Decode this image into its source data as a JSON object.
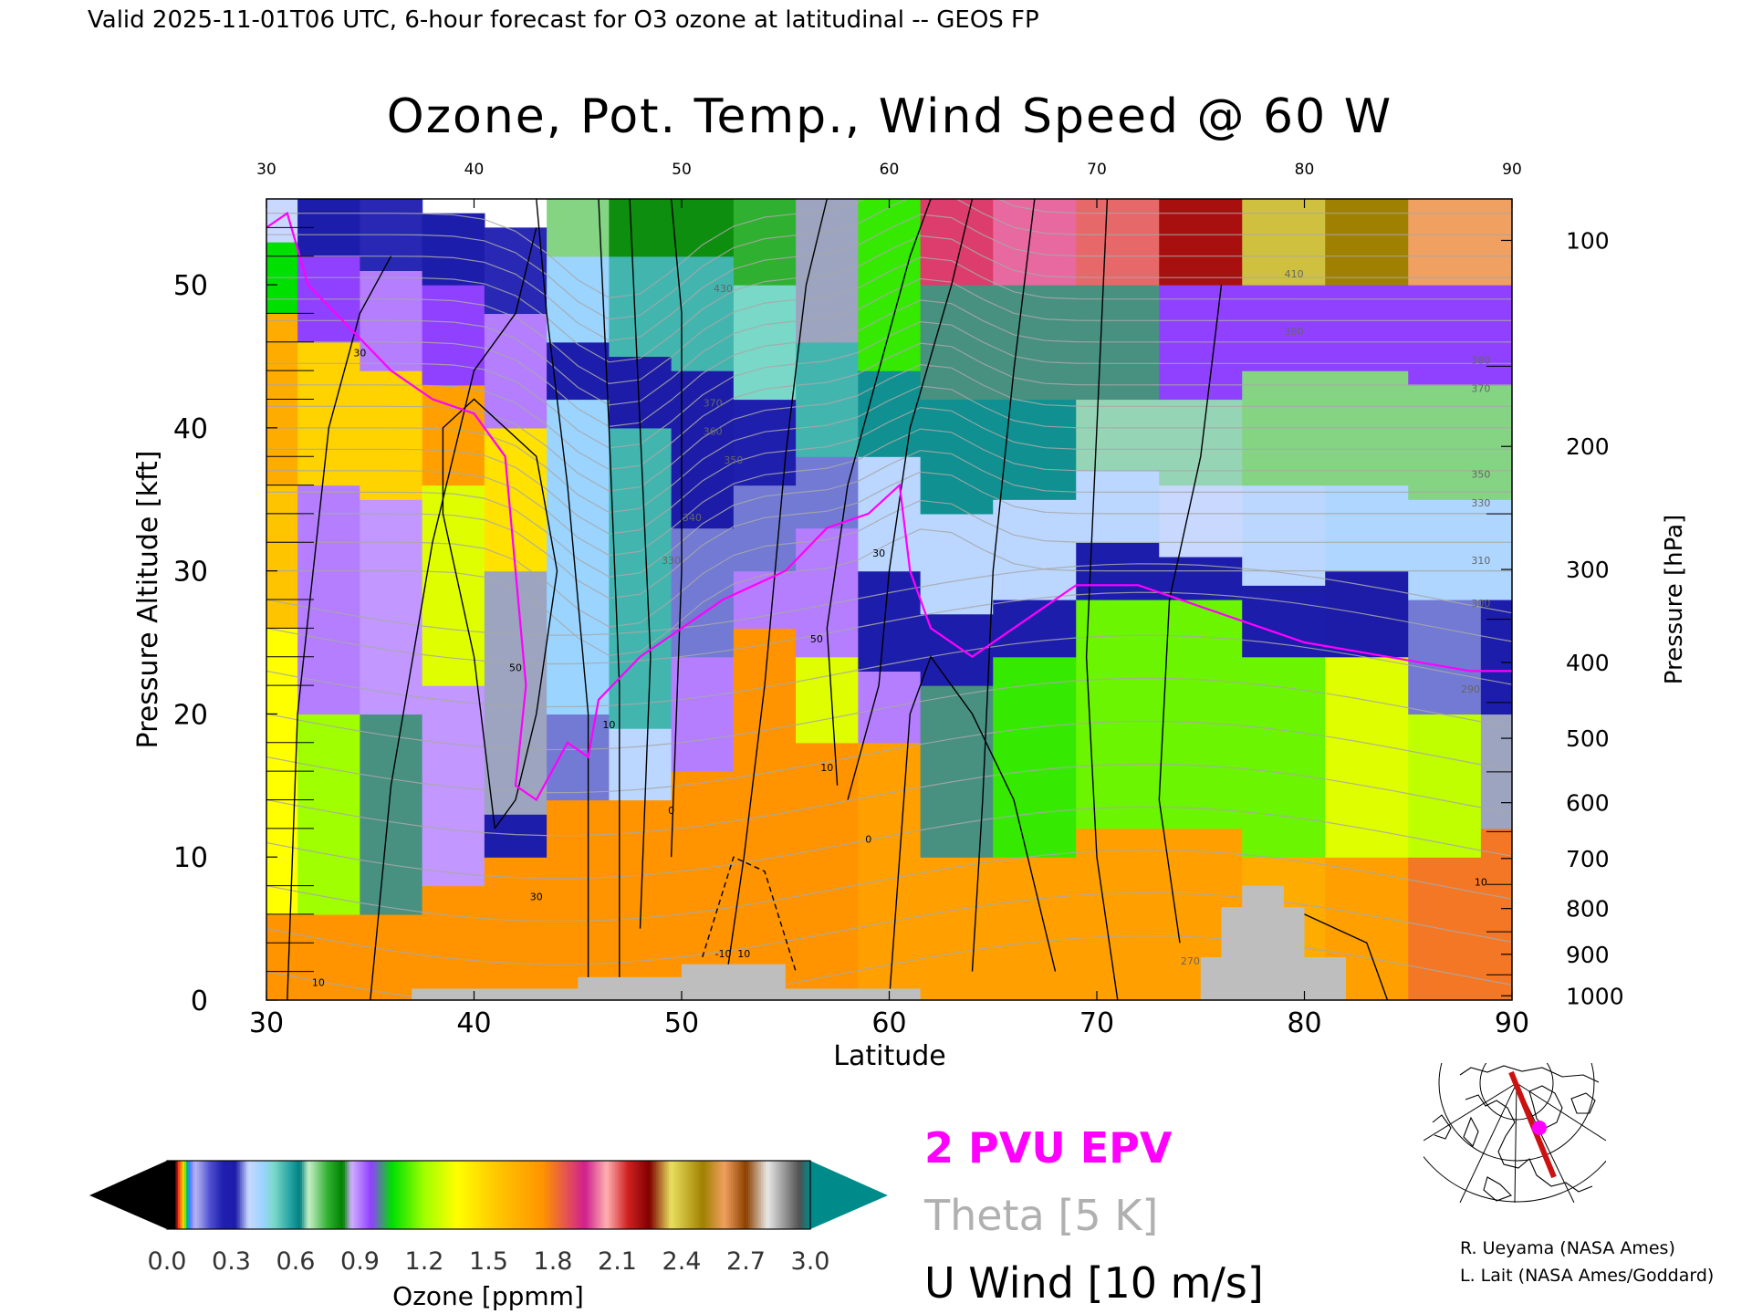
{
  "header": {
    "valid_line": "Valid 2025-11-01T06 UTC, 6-hour forecast for O3 ozone at latitudinal -- GEOS FP"
  },
  "chart_data": {
    "type": "heatmap",
    "title": "Ozone, Pot. Temp., Wind Speed @ 60 W",
    "xlabel": "Latitude",
    "ylabel": "Pressure Altitude [kft]",
    "y2label": "Pressure [hPa]",
    "xlim": [
      30,
      90
    ],
    "ylim": [
      0,
      56
    ],
    "x_ticks": [
      30,
      40,
      50,
      60,
      70,
      80,
      90
    ],
    "top_ticks": [
      30,
      40,
      50,
      60,
      70,
      80,
      90
    ],
    "y_ticks": [
      0,
      10,
      20,
      30,
      40,
      50
    ],
    "pressure_ticks": [
      {
        "label": "100",
        "kft": 53.1
      },
      {
        "label": "200",
        "kft": 38.7
      },
      {
        "label": "300",
        "kft": 30.1
      },
      {
        "label": "400",
        "kft": 23.6
      },
      {
        "label": "500",
        "kft": 18.3
      },
      {
        "label": "600",
        "kft": 13.8
      },
      {
        "label": "700",
        "kft": 9.9
      },
      {
        "label": "800",
        "kft": 6.4
      },
      {
        "label": "900",
        "kft": 3.2
      },
      {
        "label": "1000",
        "kft": 0.3
      }
    ],
    "ozone_columns": [
      {
        "lat": 30,
        "bands": [
          [
            0,
            6,
            1.75
          ],
          [
            6,
            26,
            1.35
          ],
          [
            26,
            36,
            1.55
          ],
          [
            36,
            48,
            1.65
          ],
          [
            48,
            53,
            1.05
          ],
          [
            53,
            56,
            0.38
          ]
        ]
      },
      {
        "lat": 33,
        "bands": [
          [
            0,
            6,
            1.75
          ],
          [
            6,
            20,
            1.2
          ],
          [
            20,
            36,
            0.9
          ],
          [
            36,
            46,
            1.5
          ],
          [
            46,
            52,
            0.95
          ],
          [
            52,
            56,
            0.3
          ]
        ]
      },
      {
        "lat": 36,
        "bands": [
          [
            0,
            6,
            1.75
          ],
          [
            6,
            20,
            1.0
          ],
          [
            20,
            35,
            0.88
          ],
          [
            35,
            44,
            1.5
          ],
          [
            44,
            51,
            0.9
          ],
          [
            51,
            56,
            0.25
          ]
        ]
      },
      {
        "lat": 39,
        "bands": [
          [
            0,
            8,
            1.75
          ],
          [
            8,
            22,
            0.88
          ],
          [
            22,
            36,
            1.3
          ],
          [
            36,
            43,
            1.7
          ],
          [
            43,
            50,
            0.95
          ],
          [
            50,
            55,
            0.3
          ]
        ]
      },
      {
        "lat": 42,
        "bands": [
          [
            0,
            10,
            1.75
          ],
          [
            10,
            13,
            0.3
          ],
          [
            13,
            30,
            0.85
          ],
          [
            30,
            40,
            1.45
          ],
          [
            40,
            48,
            0.9
          ],
          [
            48,
            54,
            0.25
          ]
        ]
      },
      {
        "lat": 45,
        "bands": [
          [
            0,
            14,
            1.75
          ],
          [
            14,
            20,
            0.35
          ],
          [
            20,
            42,
            0.45
          ],
          [
            42,
            46,
            0.3
          ],
          [
            46,
            52,
            0.45
          ],
          [
            52,
            56,
            0.7
          ]
        ]
      },
      {
        "lat": 48,
        "bands": [
          [
            0,
            14,
            1.75
          ],
          [
            14,
            19,
            0.4
          ],
          [
            19,
            28,
            0.55
          ],
          [
            28,
            40,
            0.55
          ],
          [
            40,
            45,
            0.32
          ],
          [
            45,
            52,
            0.55
          ],
          [
            52,
            56,
            0.8
          ]
        ]
      },
      {
        "lat": 51,
        "bands": [
          [
            0,
            16,
            1.75
          ],
          [
            16,
            24,
            0.9
          ],
          [
            24,
            33,
            0.35
          ],
          [
            33,
            44,
            0.32
          ],
          [
            44,
            52,
            0.55
          ],
          [
            52,
            56,
            0.8
          ]
        ]
      },
      {
        "lat": 54,
        "bands": [
          [
            0,
            26,
            1.75
          ],
          [
            26,
            30,
            0.9
          ],
          [
            30,
            36,
            0.35
          ],
          [
            36,
            42,
            0.28
          ],
          [
            42,
            50,
            0.5
          ],
          [
            50,
            56,
            0.75
          ]
        ]
      },
      {
        "lat": 57,
        "bands": [
          [
            0,
            18,
            1.75
          ],
          [
            18,
            24,
            1.3
          ],
          [
            24,
            33,
            0.9
          ],
          [
            33,
            38,
            0.35
          ],
          [
            38,
            46,
            0.55
          ],
          [
            46,
            56,
            0.85
          ]
        ]
      },
      {
        "lat": 60,
        "bands": [
          [
            0,
            18,
            1.7
          ],
          [
            18,
            23,
            0.9
          ],
          [
            23,
            30,
            0.3
          ],
          [
            30,
            38,
            0.4
          ],
          [
            38,
            44,
            0.6
          ],
          [
            44,
            56,
            1.1
          ]
        ]
      },
      {
        "lat": 63,
        "bands": [
          [
            0,
            10,
            1.7
          ],
          [
            10,
            22,
            1.0
          ],
          [
            22,
            27,
            0.3
          ],
          [
            27,
            34,
            0.4
          ],
          [
            34,
            42,
            0.6
          ],
          [
            42,
            50,
            1.0
          ],
          [
            50,
            56,
            1.9
          ]
        ]
      },
      {
        "lat": 67,
        "bands": [
          [
            0,
            10,
            1.7
          ],
          [
            10,
            24,
            1.1
          ],
          [
            24,
            28,
            0.3
          ],
          [
            28,
            35,
            0.4
          ],
          [
            35,
            42,
            0.6
          ],
          [
            42,
            50,
            1.0
          ],
          [
            50,
            56,
            2.0
          ]
        ]
      },
      {
        "lat": 71,
        "bands": [
          [
            0,
            12,
            1.7
          ],
          [
            12,
            28,
            1.15
          ],
          [
            28,
            32,
            0.3
          ],
          [
            32,
            37,
            0.4
          ],
          [
            37,
            42,
            0.65
          ],
          [
            42,
            50,
            1.0
          ],
          [
            50,
            56,
            2.1
          ]
        ]
      },
      {
        "lat": 75,
        "bands": [
          [
            0,
            12,
            1.7
          ],
          [
            12,
            28,
            1.15
          ],
          [
            28,
            31,
            0.3
          ],
          [
            31,
            36,
            0.38
          ],
          [
            36,
            42,
            0.65
          ],
          [
            42,
            50,
            0.95
          ],
          [
            50,
            56,
            2.2
          ]
        ]
      },
      {
        "lat": 79,
        "bands": [
          [
            0,
            10,
            1.65
          ],
          [
            10,
            24,
            1.15
          ],
          [
            24,
            29,
            0.3
          ],
          [
            29,
            36,
            0.4
          ],
          [
            36,
            44,
            0.7
          ],
          [
            44,
            50,
            0.95
          ],
          [
            50,
            56,
            2.4
          ]
        ]
      },
      {
        "lat": 83,
        "bands": [
          [
            0,
            10,
            1.7
          ],
          [
            10,
            24,
            1.3
          ],
          [
            24,
            30,
            0.32
          ],
          [
            30,
            36,
            0.42
          ],
          [
            36,
            44,
            0.7
          ],
          [
            44,
            50,
            0.95
          ],
          [
            50,
            56,
            2.5
          ]
        ]
      },
      {
        "lat": 87,
        "bands": [
          [
            0,
            10,
            1.8
          ],
          [
            10,
            20,
            1.25
          ],
          [
            20,
            28,
            0.35
          ],
          [
            28,
            35,
            0.42
          ],
          [
            35,
            43,
            0.7
          ],
          [
            43,
            50,
            0.95
          ],
          [
            50,
            56,
            2.6
          ]
        ]
      },
      {
        "lat": 90,
        "bands": [
          [
            0,
            12,
            1.8
          ],
          [
            12,
            20,
            0.85
          ],
          [
            20,
            28,
            0.3
          ],
          [
            28,
            35,
            0.42
          ],
          [
            35,
            43,
            0.7
          ],
          [
            43,
            50,
            0.95
          ],
          [
            50,
            56,
            2.6
          ]
        ]
      }
    ],
    "theta_labels": [
      {
        "text": "270",
        "lat": 74.5,
        "kft": 2.5
      },
      {
        "text": "290",
        "lat": 88,
        "kft": 21.5
      },
      {
        "text": "300",
        "lat": 88.5,
        "kft": 27.5
      },
      {
        "text": "310",
        "lat": 88.5,
        "kft": 30.5
      },
      {
        "text": "330",
        "lat": 88.5,
        "kft": 34.5
      },
      {
        "text": "350",
        "lat": 88.5,
        "kft": 36.5
      },
      {
        "text": "370",
        "lat": 88.5,
        "kft": 42.5
      },
      {
        "text": "380",
        "lat": 88.5,
        "kft": 44.5
      },
      {
        "text": "390",
        "lat": 79.5,
        "kft": 46.5
      },
      {
        "text": "410",
        "lat": 79.5,
        "kft": 50.5
      },
      {
        "text": "430",
        "lat": 52,
        "kft": 49.5
      },
      {
        "text": "370",
        "lat": 51.5,
        "kft": 41.5
      },
      {
        "text": "360",
        "lat": 51.5,
        "kft": 39.5
      },
      {
        "text": "350",
        "lat": 52.5,
        "kft": 37.5
      },
      {
        "text": "340",
        "lat": 50.5,
        "kft": 33.5
      },
      {
        "text": "330",
        "lat": 49.5,
        "kft": 30.5
      }
    ],
    "wind_labels": [
      {
        "text": "30",
        "lat": 34.5,
        "kft": 45
      },
      {
        "text": "30",
        "lat": 43,
        "kft": 7
      },
      {
        "text": "30",
        "lat": 59.5,
        "kft": 31
      },
      {
        "text": "50",
        "lat": 42,
        "kft": 23
      },
      {
        "text": "50",
        "lat": 56.5,
        "kft": 25
      },
      {
        "text": "10",
        "lat": 46.5,
        "kft": 19
      },
      {
        "text": "10",
        "lat": 57,
        "kft": 16
      },
      {
        "text": "10",
        "lat": 53,
        "kft": 3
      },
      {
        "text": "10",
        "lat": 88.5,
        "kft": 8
      },
      {
        "text": "10",
        "lat": 32.5,
        "kft": 1
      },
      {
        "text": "0",
        "lat": 49.5,
        "kft": 13
      },
      {
        "text": "0",
        "lat": 59,
        "kft": 11
      },
      {
        "text": "-10",
        "lat": 52,
        "kft": 3
      }
    ],
    "topography": [
      [
        37,
        0.8
      ],
      [
        45,
        0.8
      ],
      [
        45,
        1.6
      ],
      [
        50,
        1.6
      ],
      [
        50,
        2.5
      ],
      [
        55,
        2.5
      ],
      [
        55,
        0.8
      ],
      [
        61.5,
        0.8
      ],
      [
        61.5,
        0
      ],
      [
        75,
        0
      ],
      [
        75,
        3
      ],
      [
        76,
        3
      ],
      [
        76,
        6.5
      ],
      [
        77,
        6.5
      ],
      [
        77,
        8
      ],
      [
        79,
        8
      ],
      [
        79,
        6.5
      ],
      [
        80,
        6.5
      ],
      [
        80,
        3
      ],
      [
        82,
        3
      ],
      [
        82,
        0
      ]
    ],
    "colorbar": {
      "min": 0,
      "max": 3,
      "ticks": [
        "0.0",
        "0.3",
        "0.6",
        "0.9",
        "1.2",
        "1.5",
        "1.8",
        "2.1",
        "2.4",
        "2.7",
        "3.0"
      ],
      "label": "Ozone [ppmm]"
    },
    "legend": [
      {
        "name": "2 PVU EPV",
        "color": "#ff00ff"
      },
      {
        "name": "Theta [5 K]",
        "color": "#b0b0b0"
      },
      {
        "name": "U Wind [10 m/s]",
        "color": "#000000"
      }
    ],
    "colors": {
      "epv": "#ff00ff",
      "theta": "#a8a8a8",
      "wind": "#000000",
      "topography": "#bebebe",
      "colorbar_low": "#000000",
      "colorbar_high": "#008b8b"
    }
  },
  "map_inset": {
    "path_color": "#cc1111",
    "marker_color": "#ff00ff"
  },
  "attribution": [
    "R. Ueyama (NASA Ames)",
    "L. Lait (NASA Ames/Goddard)"
  ]
}
